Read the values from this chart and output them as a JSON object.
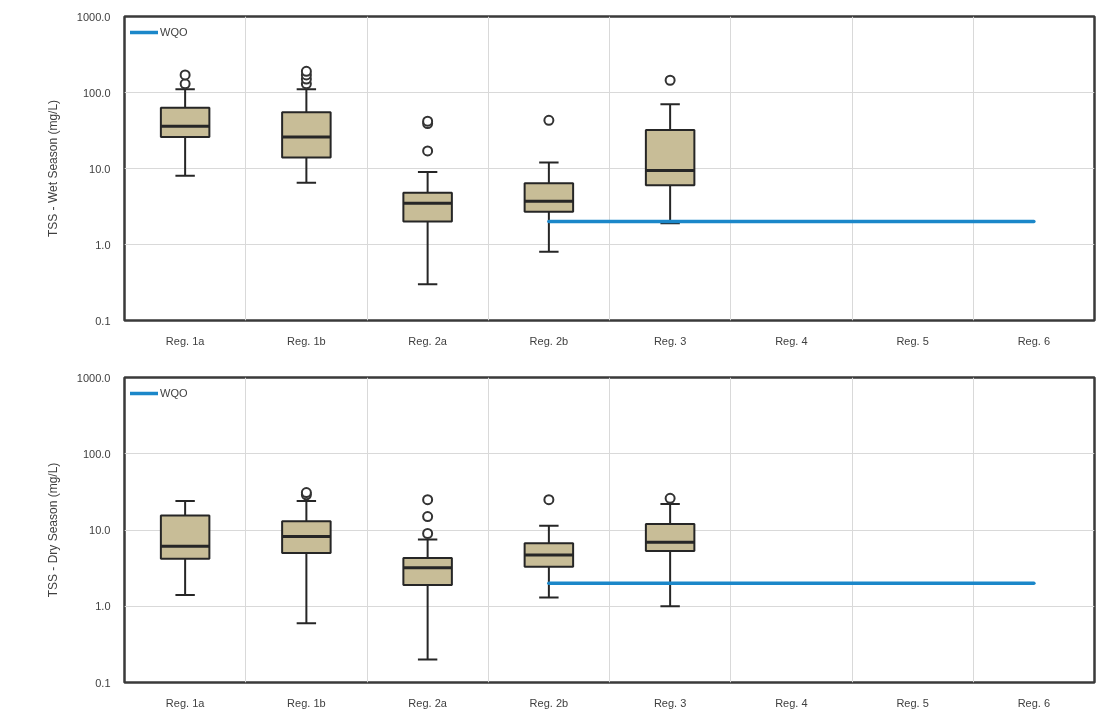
{
  "chart_data": [
    {
      "type": "box",
      "ylabel": "TSS - Wet Season (mg/L)",
      "categories": [
        "Reg. 1a",
        "Reg. 1b",
        "Reg. 2a",
        "Reg. 2b",
        "Reg. 3",
        "Reg. 4",
        "Reg. 5",
        "Reg. 6"
      ],
      "log": true,
      "ylim": [
        0.1,
        1000
      ],
      "yticks": [
        0.1,
        {
          "value": 1,
          "label": "1.0"
        },
        {
          "value": 10,
          "label": "10.0"
        },
        {
          "value": 100,
          "label": "100.0"
        },
        {
          "value": 1000,
          "label": "1000.0"
        }
      ],
      "grid": true,
      "legend": "top left",
      "series": [
        {
          "color": "#c8bd97",
          "boxes": [
            {
              "low": 8,
              "q1": 26,
              "median": 36,
              "q3": 63,
              "high": 110,
              "outliers": [
                130,
                170
              ]
            },
            {
              "low": 6.5,
              "q1": 14,
              "median": 26,
              "q3": 55,
              "high": 110,
              "outliers": [
                130,
                150,
                170,
                190
              ]
            },
            {
              "low": 0.3,
              "q1": 2.0,
              "median": 3.5,
              "q3": 4.8,
              "high": 9,
              "outliers": [
                17,
                39,
                42
              ]
            },
            {
              "low": 0.8,
              "q1": 2.7,
              "median": 3.7,
              "q3": 6.4,
              "high": 12,
              "outliers": [
                43
              ]
            },
            {
              "low": 1.9,
              "q1": 6.0,
              "median": 9.4,
              "q3": 32,
              "high": 70,
              "outliers": [
                145
              ]
            },
            null,
            null,
            null
          ]
        },
        {
          "type": "line",
          "name": "WQO",
          "color": "#1b87c9",
          "values": [
            null,
            null,
            null,
            2.0,
            2.0,
            2.0,
            2.0,
            2.0
          ]
        }
      ]
    },
    {
      "type": "box",
      "ylabel": "TSS - Dry Season (mg/L)",
      "categories": [
        "Reg. 1a",
        "Reg. 1b",
        "Reg. 2a",
        "Reg. 2b",
        "Reg. 3",
        "Reg. 4",
        "Reg. 5",
        "Reg. 6"
      ],
      "log": true,
      "ylim": [
        0.1,
        1000
      ],
      "yticks": [
        0.1,
        {
          "value": 1,
          "label": "1.0"
        },
        {
          "value": 10,
          "label": "10.0"
        },
        {
          "value": 100,
          "label": "100.0"
        },
        {
          "value": 1000,
          "label": "1000.0"
        }
      ],
      "grid": true,
      "legend": "top left",
      "series": [
        {
          "color": "#c8bd97",
          "boxes": [
            {
              "low": 1.4,
              "q1": 4.2,
              "median": 6.1,
              "q3": 15.5,
              "high": 24
            },
            {
              "low": 0.6,
              "q1": 5.0,
              "median": 8.2,
              "q3": 13,
              "high": 24,
              "outliers": [
                29,
                31
              ]
            },
            {
              "low": 0.2,
              "q1": 1.9,
              "median": 3.2,
              "q3": 4.3,
              "high": 7.5,
              "outliers": [
                9,
                15,
                25
              ]
            },
            {
              "low": 1.3,
              "q1": 3.3,
              "median": 4.7,
              "q3": 6.7,
              "high": 11.4,
              "outliers": [
                25
              ]
            },
            {
              "low": 1.0,
              "q1": 5.3,
              "median": 6.9,
              "q3": 12,
              "high": 22,
              "outliers": [
                26
              ]
            },
            null,
            null,
            null
          ]
        },
        {
          "type": "line",
          "name": "WQO",
          "color": "#1b87c9",
          "values": [
            null,
            null,
            null,
            2.0,
            2.0,
            2.0,
            2.0,
            2.0
          ]
        }
      ]
    }
  ]
}
